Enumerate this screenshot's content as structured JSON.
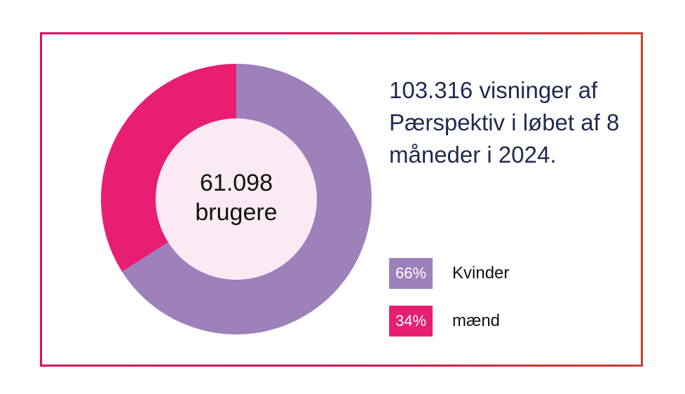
{
  "chart_data": {
    "type": "pie",
    "variant": "donut",
    "center_label": {
      "line1": "61.098",
      "line2": "brugere"
    },
    "slices": [
      {
        "label": "Kvinder",
        "value": 66,
        "display": "66%",
        "color": "#9e80ba"
      },
      {
        "label": "mænd",
        "value": 34,
        "display": "34%",
        "color": "#e81e73"
      }
    ],
    "center_fill": "#fbeaf4",
    "legend_position": "right"
  },
  "headline": "103.316 visninger af Pærspektiv i løbet af 8 måneder i 2024."
}
